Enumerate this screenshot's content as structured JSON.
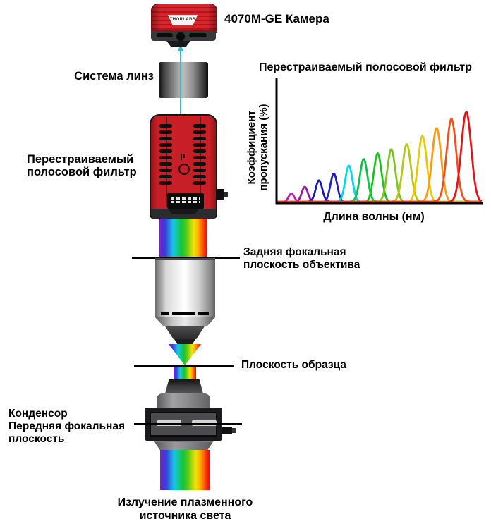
{
  "labels": {
    "camera": "4070M-GE Камера",
    "lens_system": "Система линз",
    "tunable_filter": [
      "Перестраиваемый",
      "полосовой фильтр"
    ],
    "back_focal_plane": [
      "Задняя фокальная",
      "плоскость объектива"
    ],
    "sample_plane": "Плоскость образца",
    "condenser": [
      "Конденсор",
      "Передняя фокальная",
      "плоскость"
    ],
    "light_source": [
      "Излучение плазменного",
      "источника света"
    ]
  },
  "camera_device": {
    "brand": "THORLABS"
  },
  "colors": {
    "device_red": "#c81e25",
    "optical_axis_cyan": "#35b8d8",
    "metal_gray": "#9c9c9c"
  },
  "chart_data": {
    "type": "line",
    "title": "Перестраиваемый полосовой фильтр",
    "xlabel": "Длина волны (нм)",
    "ylabel": "Коэффициент пропускания (%)",
    "ylabel_lines": [
      "Коэффициент",
      "пропускания (%)"
    ],
    "axis_tick_labels": "none visible",
    "ylim_percent": [
      0,
      100
    ],
    "legend": "none",
    "description": "13 narrow transmission peaks, wavelength increasing left to right, peak height increasing with wavelength",
    "peaks": [
      {
        "relative_x": 0.072,
        "height_percent": 7,
        "color": "#c21ac2"
      },
      {
        "relative_x": 0.137,
        "height_percent": 12,
        "color": "#a011a0"
      },
      {
        "relative_x": 0.206,
        "height_percent": 17,
        "color": "#1716ad"
      },
      {
        "relative_x": 0.278,
        "height_percent": 23,
        "color": "#1f1fc4"
      },
      {
        "relative_x": 0.351,
        "height_percent": 29,
        "color": "#00d7f0"
      },
      {
        "relative_x": 0.423,
        "height_percent": 34,
        "color": "#0cc244"
      },
      {
        "relative_x": 0.491,
        "height_percent": 39,
        "color": "#17c417"
      },
      {
        "relative_x": 0.557,
        "height_percent": 42,
        "color": "#7cc71c"
      },
      {
        "relative_x": 0.632,
        "height_percent": 46,
        "color": "#b7c713"
      },
      {
        "relative_x": 0.708,
        "height_percent": 53,
        "color": "#e9c704"
      },
      {
        "relative_x": 0.777,
        "height_percent": 59,
        "color": "#ff9a0d"
      },
      {
        "relative_x": 0.849,
        "height_percent": 66,
        "color": "#fa4a12"
      },
      {
        "relative_x": 0.921,
        "height_percent": 72,
        "color": "#e81010"
      }
    ]
  }
}
